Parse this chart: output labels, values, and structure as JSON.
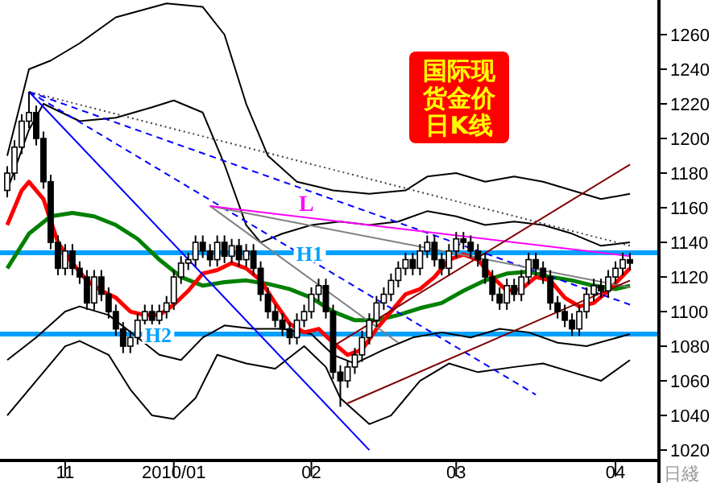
{
  "chart_data": {
    "type": "candlestick",
    "title": "国际现货金价日K线",
    "xlabel": "日綫",
    "categories": [
      null,
      null,
      null,
      null,
      null,
      null,
      null,
      null,
      "11",
      null,
      null,
      null,
      null,
      null,
      null,
      null,
      null,
      null,
      null,
      null,
      null,
      null,
      null,
      "2010/01",
      null,
      null,
      null,
      null,
      null,
      null,
      null,
      null,
      null,
      null,
      null,
      null,
      null,
      null,
      null,
      null,
      null,
      null,
      "02",
      null,
      null,
      null,
      null,
      null,
      null,
      null,
      null,
      null,
      null,
      null,
      null,
      null,
      null,
      null,
      null,
      null,
      null,
      null,
      "03",
      null,
      null,
      null,
      null,
      null,
      null,
      null,
      null,
      null,
      null,
      null,
      null,
      null,
      null,
      null,
      null,
      null,
      null,
      null,
      null,
      null,
      "04",
      null,
      null
    ],
    "ohlc": [
      [
        1170,
        1184,
        1166,
        1180
      ],
      [
        1180,
        1199,
        1176,
        1195
      ],
      [
        1195,
        1214,
        1191,
        1210
      ],
      [
        1210,
        1227,
        1206,
        1215
      ],
      [
        1215,
        1219,
        1196,
        1200
      ],
      [
        1200,
        1204,
        1171,
        1175
      ],
      [
        1175,
        1179,
        1136,
        1140
      ],
      [
        1140,
        1144,
        1121,
        1125
      ],
      [
        1125,
        1139,
        1121,
        1135
      ],
      [
        1135,
        1139,
        1121,
        1125
      ],
      [
        1125,
        1129,
        1116,
        1120
      ],
      [
        1120,
        1124,
        1101,
        1105
      ],
      [
        1105,
        1124,
        1101,
        1120
      ],
      [
        1120,
        1124,
        1106,
        1110
      ],
      [
        1110,
        1114,
        1096,
        1100
      ],
      [
        1100,
        1104,
        1086,
        1090
      ],
      [
        1090,
        1094,
        1076,
        1080
      ],
      [
        1080,
        1089,
        1076,
        1085
      ],
      [
        1085,
        1099,
        1081,
        1095
      ],
      [
        1095,
        1104,
        1091,
        1100
      ],
      [
        1100,
        1104,
        1091,
        1095
      ],
      [
        1095,
        1104,
        1091,
        1100
      ],
      [
        1100,
        1109,
        1096,
        1105
      ],
      [
        1105,
        1124,
        1101,
        1120
      ],
      [
        1120,
        1132,
        1116,
        1128
      ],
      [
        1128,
        1134,
        1124,
        1130
      ],
      [
        1130,
        1144,
        1126,
        1140
      ],
      [
        1140,
        1144,
        1131,
        1135
      ],
      [
        1135,
        1139,
        1126,
        1130
      ],
      [
        1130,
        1144,
        1126,
        1140
      ],
      [
        1140,
        1144,
        1128,
        1132
      ],
      [
        1132,
        1142,
        1128,
        1138
      ],
      [
        1138,
        1142,
        1126,
        1130
      ],
      [
        1130,
        1139,
        1126,
        1135
      ],
      [
        1135,
        1139,
        1121,
        1125
      ],
      [
        1125,
        1129,
        1106,
        1110
      ],
      [
        1110,
        1114,
        1096,
        1100
      ],
      [
        1100,
        1104,
        1091,
        1095
      ],
      [
        1095,
        1099,
        1086,
        1090
      ],
      [
        1090,
        1094,
        1081,
        1085
      ],
      [
        1085,
        1099,
        1081,
        1095
      ],
      [
        1095,
        1104,
        1091,
        1100
      ],
      [
        1100,
        1114,
        1096,
        1110
      ],
      [
        1110,
        1119,
        1106,
        1115
      ],
      [
        1115,
        1119,
        1096,
        1100
      ],
      [
        1100,
        1104,
        1061,
        1065
      ],
      [
        1065,
        1069,
        1045,
        1060
      ],
      [
        1060,
        1072,
        1056,
        1068
      ],
      [
        1068,
        1079,
        1064,
        1075
      ],
      [
        1075,
        1089,
        1071,
        1085
      ],
      [
        1085,
        1099,
        1081,
        1095
      ],
      [
        1095,
        1109,
        1091,
        1105
      ],
      [
        1105,
        1114,
        1101,
        1110
      ],
      [
        1110,
        1122,
        1106,
        1118
      ],
      [
        1118,
        1129,
        1114,
        1125
      ],
      [
        1125,
        1134,
        1121,
        1130
      ],
      [
        1130,
        1134,
        1121,
        1125
      ],
      [
        1125,
        1139,
        1121,
        1135
      ],
      [
        1135,
        1144,
        1131,
        1140
      ],
      [
        1140,
        1144,
        1126,
        1130
      ],
      [
        1130,
        1134,
        1121,
        1125
      ],
      [
        1125,
        1139,
        1121,
        1135
      ],
      [
        1135,
        1146,
        1131,
        1142
      ],
      [
        1142,
        1146,
        1136,
        1140
      ],
      [
        1140,
        1144,
        1131,
        1135
      ],
      [
        1135,
        1139,
        1126,
        1130
      ],
      [
        1130,
        1134,
        1116,
        1120
      ],
      [
        1120,
        1124,
        1106,
        1110
      ],
      [
        1110,
        1114,
        1101,
        1105
      ],
      [
        1105,
        1119,
        1101,
        1115
      ],
      [
        1115,
        1119,
        1106,
        1110
      ],
      [
        1110,
        1124,
        1106,
        1120
      ],
      [
        1120,
        1134,
        1116,
        1130
      ],
      [
        1130,
        1134,
        1121,
        1125
      ],
      [
        1125,
        1129,
        1116,
        1120
      ],
      [
        1120,
        1124,
        1101,
        1105
      ],
      [
        1105,
        1109,
        1096,
        1100
      ],
      [
        1100,
        1104,
        1091,
        1095
      ],
      [
        1095,
        1099,
        1086,
        1090
      ],
      [
        1090,
        1104,
        1086,
        1100
      ],
      [
        1100,
        1114,
        1096,
        1110
      ],
      [
        1110,
        1119,
        1106,
        1115
      ],
      [
        1115,
        1119,
        1108,
        1112
      ],
      [
        1112,
        1124,
        1108,
        1120
      ],
      [
        1120,
        1129,
        1116,
        1125
      ],
      [
        1125,
        1134,
        1121,
        1130
      ],
      [
        1130,
        1134,
        1124,
        1128
      ]
    ],
    "series": [
      {
        "type": "line",
        "color": "#000000",
        "values": [
          1190,
          null,
          null,
          1240,
          null,
          null,
          1245,
          null,
          null,
          null,
          1255,
          null,
          null,
          null,
          null,
          1270,
          null,
          null,
          null,
          null,
          null,
          null,
          1278,
          null,
          null,
          null,
          null,
          1276,
          null,
          null,
          1260,
          null,
          null,
          1220,
          null,
          null,
          1190,
          null,
          null,
          null,
          1175,
          null,
          null,
          null,
          null,
          1170,
          null,
          null,
          null,
          null,
          1168,
          null,
          null,
          null,
          null,
          1170,
          null,
          null,
          1178,
          null,
          null,
          null,
          1180,
          null,
          null,
          null,
          1175,
          null,
          null,
          null,
          1178,
          null,
          null,
          null,
          1175,
          null,
          null,
          null,
          1170,
          null,
          null,
          null,
          1165,
          null,
          null,
          null,
          1168
        ]
      },
      {
        "type": "line",
        "color": "#000000",
        "values": [
          1170,
          null,
          null,
          1205,
          null,
          1220,
          null,
          null,
          null,
          null,
          1210,
          null,
          null,
          null,
          null,
          1212,
          null,
          null,
          null,
          null,
          1218,
          null,
          null,
          1222,
          null,
          null,
          null,
          1215,
          null,
          null,
          1185,
          null,
          null,
          1150,
          null,
          1140,
          null,
          null,
          1145,
          null,
          null,
          null,
          1150,
          null,
          null,
          null,
          1152,
          null,
          null,
          null,
          1150,
          null,
          null,
          null,
          1152,
          null,
          null,
          null,
          1158,
          null,
          null,
          null,
          1155,
          null,
          null,
          null,
          1150,
          null,
          null,
          null,
          1152,
          null,
          null,
          null,
          1150,
          null,
          null,
          null,
          1145,
          null,
          null,
          null,
          1138,
          null,
          null,
          null,
          1140
        ]
      },
      {
        "type": "line",
        "color": "#000000",
        "values": [
          1072,
          null,
          null,
          null,
          1085,
          null,
          null,
          null,
          1100,
          null,
          1103,
          null,
          null,
          null,
          1098,
          null,
          null,
          null,
          1085,
          null,
          null,
          1075,
          null,
          null,
          1072,
          null,
          null,
          1085,
          null,
          null,
          1092,
          null,
          null,
          null,
          1090,
          null,
          null,
          null,
          1090,
          null,
          null,
          null,
          1087,
          null,
          null,
          1075,
          null,
          null,
          1070,
          null,
          null,
          null,
          1078,
          null,
          null,
          null,
          1085,
          null,
          null,
          null,
          1088,
          null,
          null,
          null,
          1085,
          null,
          null,
          null,
          1090,
          null,
          null,
          null,
          1088,
          null,
          null,
          null,
          1082,
          null,
          null,
          null,
          1080,
          null,
          null,
          null,
          null,
          null,
          1087
        ]
      },
      {
        "type": "line",
        "color": "#000000",
        "values": [
          1040,
          null,
          null,
          null,
          1060,
          null,
          null,
          null,
          1080,
          null,
          1083,
          null,
          null,
          null,
          1075,
          null,
          null,
          1055,
          null,
          null,
          1040,
          null,
          null,
          1038,
          null,
          null,
          1050,
          null,
          null,
          1075,
          null,
          null,
          null,
          1070,
          null,
          null,
          null,
          1067,
          null,
          null,
          null,
          1080,
          null,
          null,
          1068,
          null,
          1050,
          null,
          null,
          null,
          1035,
          null,
          null,
          1040,
          null,
          null,
          null,
          1060,
          null,
          null,
          null,
          1070,
          null,
          null,
          null,
          1065,
          null,
          null,
          null,
          null,
          1068,
          null,
          null,
          null,
          1070,
          null,
          null,
          null,
          1065,
          null,
          null,
          null,
          1060,
          null,
          null,
          null,
          1072
        ]
      },
      {
        "type": "line",
        "color": "#008000",
        "values": [
          1125,
          null,
          null,
          1145,
          null,
          null,
          1155,
          null,
          null,
          1157,
          null,
          null,
          1155,
          null,
          null,
          1150,
          null,
          null,
          1142,
          null,
          null,
          1130,
          null,
          null,
          1120,
          null,
          null,
          1115,
          null,
          null,
          1117,
          null,
          null,
          1118,
          null,
          null,
          1116,
          null,
          null,
          1113,
          null,
          null,
          1108,
          null,
          null,
          1100,
          null,
          null,
          1095,
          null,
          null,
          1095,
          null,
          null,
          1098,
          null,
          null,
          1102,
          null,
          null,
          1105,
          null,
          null,
          1112,
          null,
          null,
          1118,
          null,
          null,
          1122,
          null,
          null,
          1123,
          null,
          null,
          1120,
          null,
          null,
          1118,
          null,
          null,
          1115,
          null,
          null,
          1113,
          null,
          1115
        ]
      },
      {
        "type": "line",
        "color": "#ff0000",
        "values": [
          1150,
          null,
          1170,
          1175,
          null,
          1165,
          null,
          1140,
          null,
          1128,
          null,
          1118,
          null,
          1112,
          null,
          1108,
          null,
          1100,
          null,
          1098,
          null,
          1098,
          null,
          1104,
          null,
          1112,
          null,
          1122,
          null,
          1124,
          null,
          1128,
          null,
          1125,
          null,
          1118,
          null,
          1105,
          null,
          1093,
          null,
          1088,
          null,
          1090,
          null,
          1082,
          null,
          1075,
          null,
          1078,
          null,
          1090,
          null,
          1100,
          null,
          1110,
          null,
          1113,
          null,
          1120,
          null,
          1130,
          null,
          1133,
          null,
          1130,
          null,
          1120,
          null,
          1112,
          null,
          1113,
          null,
          1120,
          null,
          1118,
          null,
          1108,
          null,
          1103,
          null,
          1105,
          null,
          1112,
          null,
          null,
          1125
        ]
      },
      {
        "type": "line",
        "color": "#0000ff",
        "values": [
          null,
          null,
          null,
          1227,
          null,
          null,
          null,
          null,
          null,
          null,
          null,
          null,
          null,
          null,
          null,
          null,
          null,
          null,
          null,
          null,
          null,
          null,
          null,
          null,
          null,
          null,
          null,
          null,
          null,
          null,
          null,
          null,
          null,
          null,
          null,
          null,
          null,
          null,
          null,
          null,
          null,
          null,
          null,
          null,
          null,
          null,
          null,
          null,
          null,
          null,
          1020,
          null,
          null,
          null,
          null,
          null,
          null,
          null,
          null,
          null,
          null,
          null,
          null,
          null,
          null,
          null,
          null,
          null,
          null,
          null,
          null,
          null,
          null,
          null,
          null,
          null,
          null,
          null,
          null,
          null,
          null,
          null,
          null,
          null,
          null,
          null,
          null
        ]
      },
      {
        "type": "line",
        "color": "#0000ff",
        "line_style": "dashed",
        "values": [
          null,
          null,
          null,
          1227,
          null,
          null,
          null,
          null,
          null,
          null,
          null,
          null,
          null,
          null,
          null,
          null,
          null,
          null,
          null,
          null,
          null,
          null,
          null,
          null,
          null,
          null,
          null,
          null,
          null,
          null,
          null,
          null,
          null,
          null,
          null,
          null,
          null,
          null,
          null,
          null,
          null,
          null,
          null,
          null,
          null,
          null,
          null,
          null,
          null,
          null,
          null,
          null,
          null,
          null,
          null,
          null,
          null,
          null,
          null,
          null,
          null,
          null,
          null,
          null,
          null,
          null,
          null,
          null,
          null,
          null,
          null,
          null,
          null,
          null,
          null,
          null,
          null,
          null,
          null,
          null,
          null,
          null,
          null,
          null,
          null,
          null,
          1104
        ]
      },
      {
        "type": "line",
        "color": "#0000ff",
        "line_style": "dashed",
        "values": [
          null,
          null,
          null,
          1227,
          null,
          null,
          null,
          null,
          null,
          null,
          null,
          null,
          null,
          null,
          null,
          null,
          null,
          null,
          null,
          null,
          null,
          null,
          null,
          null,
          null,
          null,
          null,
          null,
          null,
          null,
          null,
          null,
          null,
          null,
          null,
          null,
          null,
          null,
          null,
          null,
          null,
          null,
          null,
          null,
          null,
          null,
          null,
          null,
          null,
          null,
          null,
          null,
          null,
          null,
          null,
          null,
          null,
          null,
          null,
          null,
          null,
          null,
          null,
          null,
          null,
          null,
          null,
          null,
          null,
          null,
          null,
          null,
          null,
          1052,
          null,
          null,
          null,
          null,
          null,
          null,
          null,
          null,
          null,
          null,
          null,
          null,
          null
        ]
      },
      {
        "type": "line",
        "color": "#404040",
        "line_style": "dotted",
        "values": [
          null,
          null,
          null,
          1227,
          null,
          null,
          null,
          null,
          null,
          null,
          null,
          null,
          null,
          null,
          null,
          null,
          null,
          null,
          null,
          null,
          null,
          null,
          null,
          null,
          null,
          null,
          null,
          null,
          null,
          null,
          null,
          null,
          null,
          null,
          null,
          null,
          null,
          null,
          null,
          null,
          null,
          null,
          null,
          null,
          null,
          null,
          null,
          null,
          null,
          null,
          null,
          null,
          null,
          null,
          null,
          null,
          null,
          null,
          null,
          null,
          null,
          null,
          null,
          null,
          null,
          null,
          null,
          null,
          null,
          null,
          null,
          null,
          null,
          null,
          null,
          null,
          null,
          null,
          null,
          null,
          null,
          null,
          null,
          null,
          null,
          null,
          1138
        ]
      },
      {
        "type": "line",
        "color": "#808080",
        "values": [
          null,
          null,
          null,
          null,
          null,
          null,
          null,
          null,
          null,
          null,
          null,
          null,
          null,
          null,
          null,
          null,
          null,
          null,
          null,
          null,
          null,
          null,
          null,
          null,
          null,
          null,
          null,
          null,
          1161,
          null,
          null,
          null,
          null,
          null,
          null,
          null,
          null,
          null,
          null,
          null,
          null,
          null,
          null,
          null,
          null,
          null,
          null,
          null,
          null,
          null,
          null,
          null,
          null,
          null,
          1082,
          null,
          null,
          null,
          null,
          null,
          null,
          null,
          null,
          null,
          null,
          null,
          null,
          null,
          null,
          null,
          null,
          null,
          null,
          null,
          null,
          null,
          null,
          null,
          null,
          null,
          null,
          null,
          null,
          null,
          null,
          null,
          null
        ]
      },
      {
        "type": "line",
        "color": "#808080",
        "values": [
          null,
          null,
          null,
          null,
          null,
          null,
          null,
          null,
          null,
          null,
          null,
          null,
          null,
          null,
          null,
          null,
          null,
          null,
          null,
          null,
          null,
          null,
          null,
          null,
          null,
          null,
          null,
          null,
          1161,
          null,
          null,
          null,
          null,
          null,
          null,
          null,
          null,
          null,
          null,
          null,
          null,
          null,
          null,
          null,
          null,
          null,
          null,
          null,
          null,
          null,
          null,
          null,
          null,
          null,
          null,
          null,
          null,
          null,
          null,
          null,
          null,
          null,
          null,
          null,
          null,
          null,
          null,
          null,
          null,
          null,
          null,
          null,
          null,
          null,
          null,
          null,
          null,
          null,
          null,
          null,
          null,
          null,
          null,
          null,
          null,
          null,
          1114
        ]
      },
      {
        "type": "line",
        "color": "#ff00ff",
        "values": [
          null,
          null,
          null,
          null,
          null,
          null,
          null,
          null,
          null,
          null,
          null,
          null,
          null,
          null,
          null,
          null,
          null,
          null,
          null,
          null,
          null,
          null,
          null,
          null,
          null,
          null,
          null,
          null,
          1161,
          null,
          null,
          null,
          null,
          null,
          null,
          null,
          null,
          null,
          null,
          null,
          null,
          null,
          null,
          null,
          null,
          null,
          null,
          null,
          null,
          null,
          null,
          null,
          null,
          null,
          null,
          null,
          null,
          null,
          null,
          null,
          null,
          null,
          null,
          null,
          null,
          null,
          null,
          null,
          null,
          null,
          null,
          null,
          null,
          null,
          null,
          null,
          null,
          null,
          null,
          null,
          null,
          null,
          null,
          null,
          null,
          null,
          1132
        ]
      },
      {
        "type": "line",
        "color": "#800000",
        "values": [
          null,
          null,
          null,
          null,
          null,
          null,
          null,
          null,
          null,
          null,
          null,
          null,
          null,
          null,
          null,
          null,
          null,
          null,
          null,
          null,
          null,
          null,
          null,
          null,
          null,
          null,
          null,
          null,
          null,
          null,
          null,
          null,
          null,
          null,
          null,
          null,
          null,
          null,
          null,
          null,
          null,
          null,
          null,
          null,
          null,
          1080,
          null,
          null,
          null,
          null,
          null,
          null,
          null,
          null,
          null,
          null,
          null,
          null,
          null,
          null,
          null,
          null,
          null,
          null,
          null,
          null,
          null,
          null,
          null,
          null,
          null,
          null,
          null,
          null,
          null,
          null,
          null,
          null,
          null,
          null,
          null,
          null,
          null,
          null,
          null,
          null,
          1185
        ]
      },
      {
        "type": "line",
        "color": "#800000",
        "values": [
          null,
          null,
          null,
          null,
          null,
          null,
          null,
          null,
          null,
          null,
          null,
          null,
          null,
          null,
          null,
          null,
          null,
          null,
          null,
          null,
          null,
          null,
          null,
          null,
          null,
          null,
          null,
          null,
          null,
          null,
          null,
          null,
          null,
          null,
          null,
          null,
          null,
          null,
          null,
          null,
          null,
          null,
          null,
          null,
          null,
          null,
          null,
          1047,
          null,
          null,
          null,
          null,
          null,
          null,
          null,
          null,
          null,
          null,
          null,
          null,
          null,
          null,
          null,
          null,
          null,
          null,
          null,
          null,
          null,
          null,
          null,
          null,
          null,
          null,
          null,
          null,
          null,
          null,
          null,
          null,
          null,
          null,
          null,
          null,
          null,
          null,
          1118
        ]
      }
    ],
    "ref_lines": [
      {
        "axis": "y",
        "value": 1134,
        "label": "H1",
        "color": "#00a0ff"
      },
      {
        "axis": "y",
        "value": 1087,
        "label": "H2",
        "color": "#00a0ff"
      }
    ],
    "annotations": [
      {
        "text": "L",
        "y": 1157
      }
    ],
    "ylim": [
      1014,
      1280
    ],
    "yticks": [
      1020,
      1040,
      1060,
      1080,
      1100,
      1120,
      1140,
      1160,
      1180,
      1200,
      1220,
      1240,
      1260
    ]
  }
}
